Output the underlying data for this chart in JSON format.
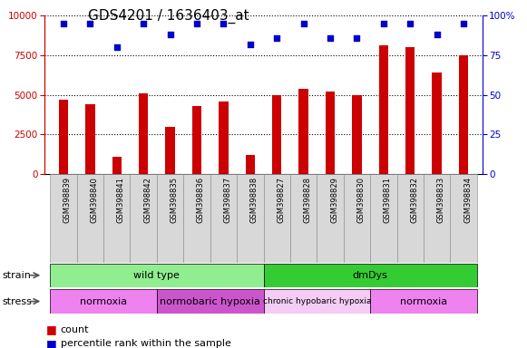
{
  "title": "GDS4201 / 1636403_at",
  "samples": [
    "GSM398839",
    "GSM398840",
    "GSM398841",
    "GSM398842",
    "GSM398835",
    "GSM398836",
    "GSM398837",
    "GSM398838",
    "GSM398827",
    "GSM398828",
    "GSM398829",
    "GSM398830",
    "GSM398831",
    "GSM398832",
    "GSM398833",
    "GSM398834"
  ],
  "counts": [
    4700,
    4400,
    1100,
    5100,
    3000,
    4300,
    4600,
    1200,
    5000,
    5400,
    5200,
    5000,
    8100,
    8000,
    6400,
    7500
  ],
  "percentile": [
    95,
    95,
    80,
    95,
    88,
    95,
    95,
    82,
    86,
    95,
    86,
    86,
    95,
    95,
    88,
    95
  ],
  "ylim_left": [
    0,
    10000
  ],
  "ylim_right": [
    0,
    100
  ],
  "yticks_left": [
    0,
    2500,
    5000,
    7500,
    10000
  ],
  "yticks_right": [
    0,
    25,
    50,
    75,
    100
  ],
  "bar_color": "#cc0000",
  "dot_color": "#0000cc",
  "strain_labels": [
    {
      "text": "wild type",
      "start": 0,
      "end": 8,
      "color": "#90ee90"
    },
    {
      "text": "dmDys",
      "start": 8,
      "end": 16,
      "color": "#33cc33"
    }
  ],
  "stress_labels": [
    {
      "text": "normoxia",
      "start": 0,
      "end": 4,
      "color": "#ee82ee"
    },
    {
      "text": "normobaric hypoxia",
      "start": 4,
      "end": 8,
      "color": "#cc55cc"
    },
    {
      "text": "chronic hypobaric hypoxia",
      "start": 8,
      "end": 12,
      "color": "#f5ccf5"
    },
    {
      "text": "normoxia",
      "start": 12,
      "end": 16,
      "color": "#ee82ee"
    }
  ],
  "background_color": "#ffffff",
  "title_fontsize": 11,
  "tick_fontsize": 7.5,
  "label_fontsize": 8
}
